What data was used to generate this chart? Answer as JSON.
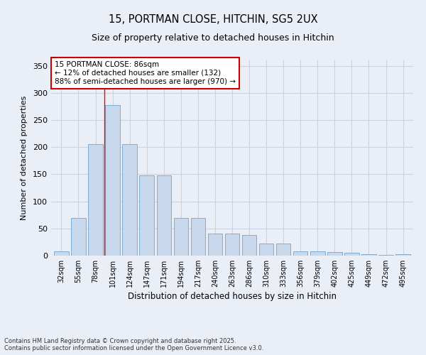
{
  "title_line1": "15, PORTMAN CLOSE, HITCHIN, SG5 2UX",
  "title_line2": "Size of property relative to detached houses in Hitchin",
  "xlabel": "Distribution of detached houses by size in Hitchin",
  "ylabel": "Number of detached properties",
  "categories": [
    "32sqm",
    "55sqm",
    "78sqm",
    "101sqm",
    "124sqm",
    "147sqm",
    "171sqm",
    "194sqm",
    "217sqm",
    "240sqm",
    "263sqm",
    "286sqm",
    "310sqm",
    "333sqm",
    "356sqm",
    "379sqm",
    "402sqm",
    "425sqm",
    "449sqm",
    "472sqm",
    "495sqm"
  ],
  "values": [
    8,
    70,
    205,
    278,
    205,
    148,
    148,
    70,
    70,
    40,
    40,
    38,
    22,
    22,
    8,
    8,
    6,
    5,
    2,
    1,
    2
  ],
  "bar_color": "#c8d8ec",
  "bar_edge_color": "#7bafd4",
  "bar_edge_width": 0.7,
  "grid_color": "#c8d4e4",
  "bg_color": "#eaeff7",
  "ylim": [
    0,
    360
  ],
  "yticks": [
    0,
    50,
    100,
    150,
    200,
    250,
    300,
    350
  ],
  "red_line_index": 2.5,
  "annotation_text": "15 PORTMAN CLOSE: 86sqm\n← 12% of detached houses are smaller (132)\n88% of semi-detached houses are larger (970) →",
  "annotation_box_color": "#ffffff",
  "annotation_border_color": "#cc0000",
  "footer_line1": "Contains HM Land Registry data © Crown copyright and database right 2025.",
  "footer_line2": "Contains public sector information licensed under the Open Government Licence v3.0."
}
